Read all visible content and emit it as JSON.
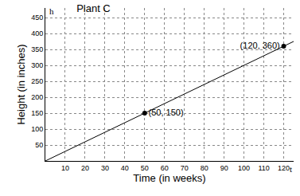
{
  "chart_data": {
    "type": "line",
    "title": "Plant C",
    "x_label": "Time (in weeks)",
    "y_label": "Height (in inches)",
    "annotations": [
      {
        "text": "h"
      },
      {
        "text": "t"
      }
    ],
    "xlim": [
      0,
      125
    ],
    "ylim": [
      0,
      480
    ],
    "xticks": [
      10,
      20,
      30,
      40,
      50,
      60,
      70,
      80,
      90,
      100,
      110,
      120
    ],
    "yticks": [
      50,
      100,
      150,
      200,
      250,
      300,
      350,
      400,
      450
    ],
    "grid": true,
    "series": [
      {
        "type": "line",
        "color": "#000000",
        "x": [
          0,
          125
        ],
        "values": [
          0,
          375
        ]
      },
      {
        "type": "scatter",
        "color": "#000000",
        "marker": "circle",
        "x": [
          50,
          120
        ],
        "values": [
          150,
          360
        ],
        "data_labels": true,
        "value_labels": [
          "(50, 150)",
          "(120, 360)"
        ]
      }
    ]
  }
}
